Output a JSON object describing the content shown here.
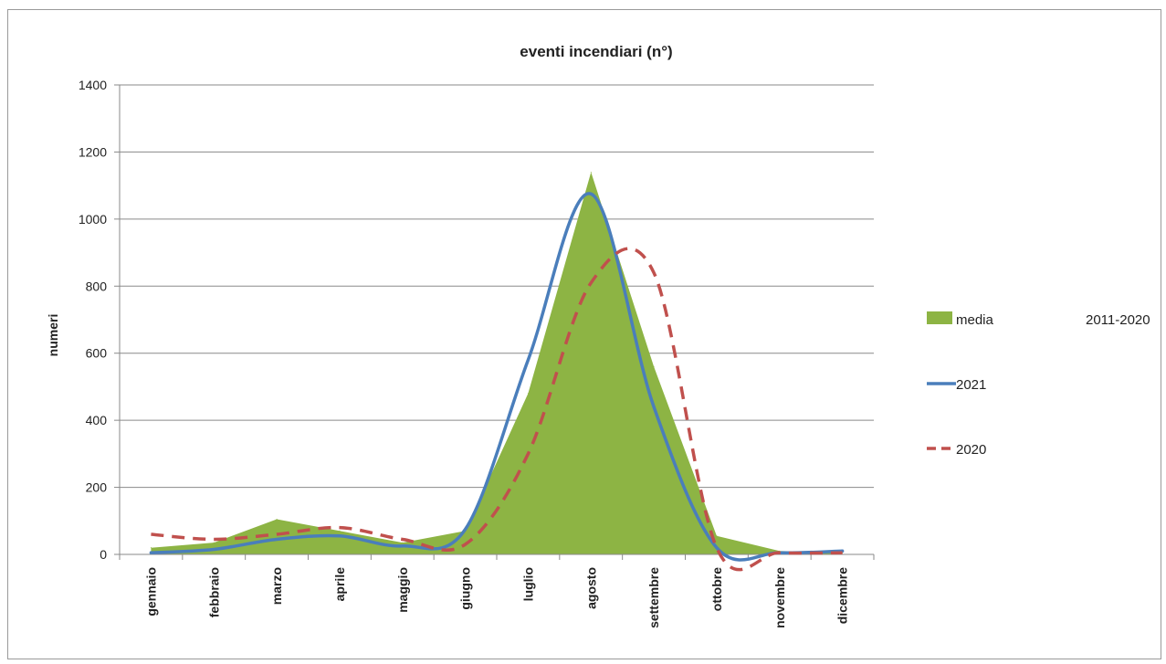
{
  "chart_data": {
    "type": "line",
    "title": "eventi incendiari  (n°)",
    "xlabel": "",
    "ylabel": "numeri",
    "ylim": [
      0,
      1400
    ],
    "yticks": [
      "0",
      "200",
      "400",
      "600",
      "800",
      "1000",
      "1200",
      "1400"
    ],
    "grid": true,
    "legend_position": "right",
    "categories": [
      "gennaio",
      "febbraio",
      "marzo",
      "aprile",
      "maggio",
      "giugno",
      "luglio",
      "agosto",
      "settembre",
      "ottobre",
      "novembre",
      "dicembre"
    ],
    "series": [
      {
        "name": "media",
        "name_suffix": "2011-2020",
        "style": "area",
        "color": "#8db444",
        "values": [
          20,
          35,
          105,
          70,
          35,
          70,
          480,
          1140,
          560,
          55,
          10,
          5
        ]
      },
      {
        "name": "2021",
        "style": "line",
        "color": "#4a7ebb",
        "values": [
          5,
          15,
          45,
          55,
          25,
          75,
          580,
          1075,
          440,
          20,
          5,
          10
        ]
      },
      {
        "name": "2020",
        "style": "dashed",
        "color": "#c0504d",
        "values": [
          60,
          45,
          60,
          80,
          45,
          30,
          300,
          810,
          840,
          20,
          5,
          5
        ]
      }
    ]
  }
}
